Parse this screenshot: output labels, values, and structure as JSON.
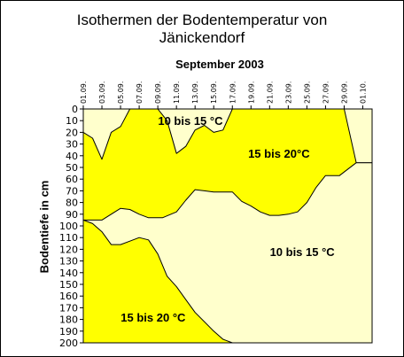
{
  "chart_data": {
    "type": "area",
    "title_line1": "Isothermen der Bodentemperatur von",
    "title_line2": "Jänickendorf",
    "subtitle": "September 2003",
    "ylabel": "Bodentiefe in cm",
    "xlabel": "",
    "x_categories": [
      "01.09.",
      "03.09.",
      "05.09.",
      "07.09.",
      "09.09.",
      "11.09.",
      "13.09.",
      "15.09.",
      "17.09.",
      "19.09.",
      "21.09.",
      "23.09.",
      "25.09.",
      "27.09.",
      "29.09.",
      "01.10."
    ],
    "ylim": [
      0,
      200
    ],
    "y_ticks": [
      0,
      10,
      20,
      30,
      40,
      50,
      60,
      70,
      80,
      90,
      100,
      110,
      120,
      130,
      140,
      150,
      160,
      170,
      180,
      190,
      200
    ],
    "y_inverted": true,
    "colors": {
      "warm": "#FFFF00",
      "cool": "#FFFFCC",
      "line": "#000000"
    },
    "regions": [
      {
        "name": "10 bis 15 °C",
        "color": "cool",
        "points": [
          [
            1,
            0
          ],
          [
            1,
            20
          ],
          [
            2,
            25
          ],
          [
            3,
            43
          ],
          [
            4,
            20
          ],
          [
            5,
            15
          ],
          [
            6,
            0
          ]
        ]
      },
      {
        "name": "10 bis 15 °C",
        "color": "cool",
        "points": [
          [
            9,
            0
          ],
          [
            10,
            10
          ],
          [
            11,
            38
          ],
          [
            12,
            32
          ],
          [
            13,
            18
          ],
          [
            14,
            14
          ],
          [
            15,
            20
          ],
          [
            16,
            18
          ],
          [
            17,
            0
          ]
        ]
      },
      {
        "name": "10 bis 15 °C",
        "color": "cool",
        "points": [
          [
            29,
            0
          ],
          [
            30.3,
            46
          ],
          [
            32,
            46
          ],
          [
            32,
            0
          ]
        ]
      },
      {
        "name": "10 bis 15 °C",
        "color": "cool",
        "points": [
          [
            1,
            95
          ],
          [
            3,
            95
          ],
          [
            5,
            85
          ],
          [
            6,
            86
          ],
          [
            7,
            90
          ],
          [
            8,
            93
          ],
          [
            9.5,
            93
          ],
          [
            11,
            88
          ],
          [
            12,
            78
          ],
          [
            13,
            69
          ],
          [
            14,
            70
          ],
          [
            15,
            71
          ],
          [
            16,
            71
          ],
          [
            17,
            71
          ],
          [
            18,
            79
          ],
          [
            19,
            83
          ],
          [
            20,
            88
          ],
          [
            21,
            91
          ],
          [
            22,
            91
          ],
          [
            23,
            90
          ],
          [
            24,
            88
          ],
          [
            25,
            80
          ],
          [
            26,
            67
          ],
          [
            27,
            57
          ],
          [
            28.5,
            57
          ],
          [
            30.3,
            46
          ],
          [
            32,
            46
          ],
          [
            32,
            200
          ],
          [
            17,
            200
          ],
          [
            16,
            197
          ],
          [
            15,
            190
          ],
          [
            14,
            182
          ],
          [
            13,
            174
          ],
          [
            12,
            163
          ],
          [
            11,
            152
          ],
          [
            10,
            143
          ],
          [
            9,
            124
          ],
          [
            8,
            112
          ],
          [
            7,
            110
          ],
          [
            6,
            113
          ],
          [
            5,
            116
          ],
          [
            4,
            116
          ],
          [
            3,
            105
          ],
          [
            2,
            98
          ],
          [
            1,
            95
          ]
        ]
      }
    ],
    "labels": [
      {
        "text": "10 bis 15 °C",
        "x": 12.5,
        "y": 10
      },
      {
        "text": "15 bis 20°C",
        "x": 22,
        "y": 38
      },
      {
        "text": "10 bis 15 °C",
        "x": 24.5,
        "y": 122
      },
      {
        "text": "15 bis 20 °C",
        "x": 8.5,
        "y": 178
      }
    ],
    "x_domain": [
      1,
      32
    ]
  }
}
